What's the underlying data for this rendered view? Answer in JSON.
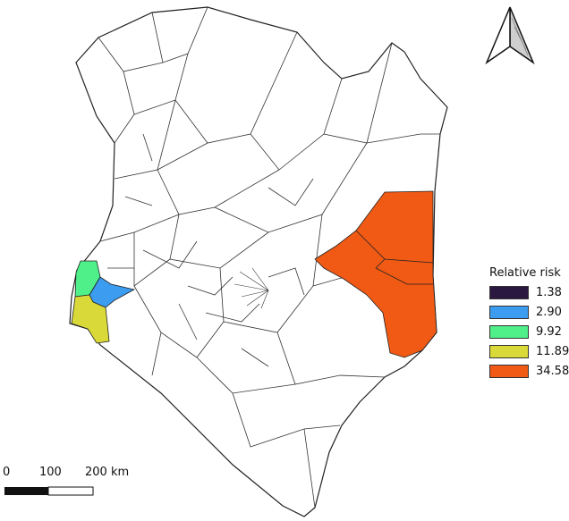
{
  "legend": {
    "title": "Relative risk",
    "entries": [
      {
        "label": "1.38",
        "color": "#2b1840"
      },
      {
        "label": "2.90",
        "color": "#3b9cf0"
      },
      {
        "label": "9.92",
        "color": "#4ff08a"
      },
      {
        "label": "11.89",
        "color": "#d9d93a"
      },
      {
        "label": "34.58",
        "color": "#f05a14"
      }
    ]
  },
  "scale_bar": {
    "labels": [
      "0",
      "100",
      "200 km"
    ]
  },
  "north_arrow": {
    "icon": "north-arrow-icon"
  }
}
